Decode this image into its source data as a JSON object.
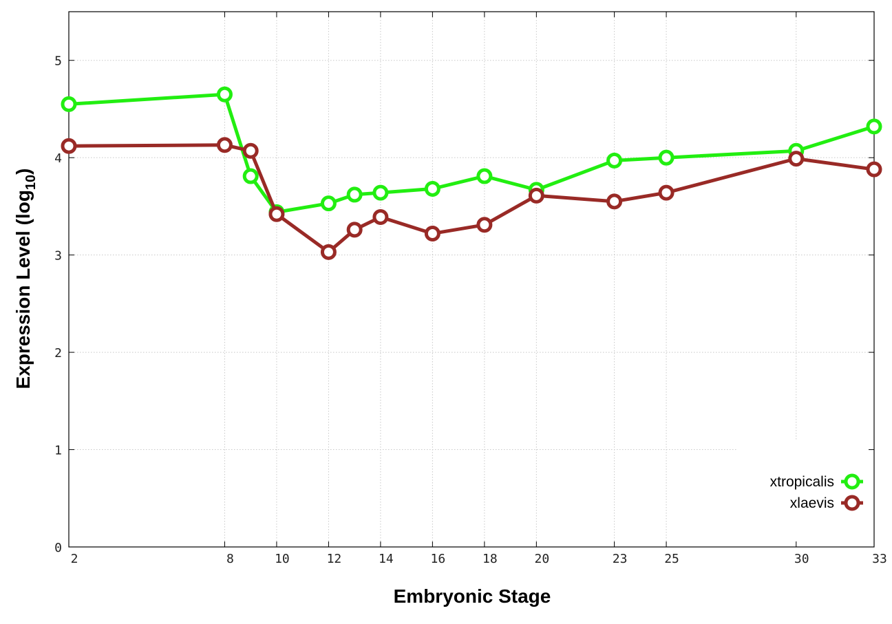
{
  "chart_data": {
    "type": "line",
    "xlabel": "Embryonic Stage",
    "ylabel_main": "Expression Level (log",
    "ylabel_sub": "10",
    "ylabel_close": ")",
    "xlim": [
      2,
      33
    ],
    "ylim": [
      0,
      5.5
    ],
    "x_ticks": [
      2,
      8,
      10,
      12,
      14,
      16,
      18,
      20,
      23,
      25,
      30,
      33
    ],
    "y_ticks": [
      0,
      1,
      2,
      3,
      4,
      5
    ],
    "grid": true,
    "legend_position": "bottom-right",
    "series": [
      {
        "name": "xtropicalis",
        "color": "#22ee11",
        "x": [
          2,
          8,
          9,
          10,
          12,
          13,
          14,
          16,
          18,
          20,
          23,
          25,
          30,
          33
        ],
        "y": [
          4.55,
          4.65,
          3.81,
          3.44,
          3.53,
          3.62,
          3.64,
          3.68,
          3.81,
          3.67,
          3.97,
          4.0,
          4.07,
          4.32
        ]
      },
      {
        "name": "xlaevis",
        "color": "#992a26",
        "x": [
          2,
          8,
          9,
          10,
          12,
          13,
          14,
          16,
          18,
          20,
          23,
          25,
          30,
          33
        ],
        "y": [
          4.12,
          4.13,
          4.07,
          3.42,
          3.03,
          3.26,
          3.39,
          3.22,
          3.31,
          3.61,
          3.55,
          3.64,
          3.99,
          3.88
        ]
      }
    ]
  }
}
